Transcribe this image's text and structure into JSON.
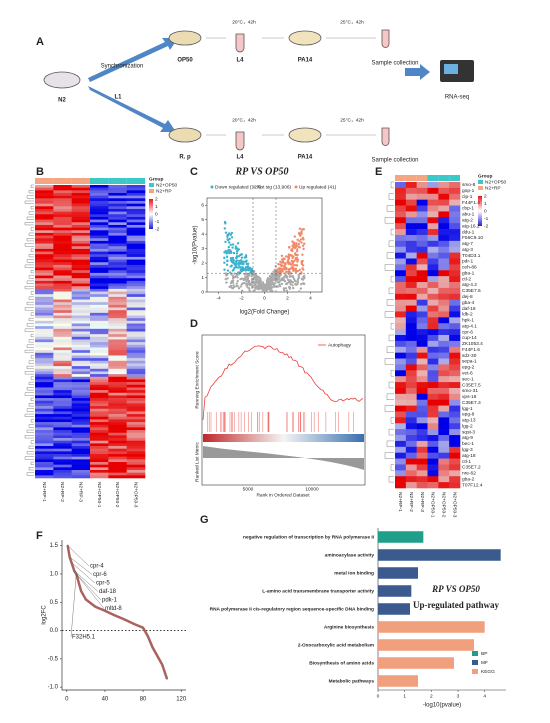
{
  "panel_a": {
    "letter": "A",
    "strain": "N2",
    "step": "Synchronization",
    "stage": "L1",
    "upper": {
      "food": "OP50",
      "cond1": "20°C，42h",
      "stage": "L4",
      "pathogen": "PA14",
      "cond2": "25°C，42h",
      "end": "Sample collection"
    },
    "lower": {
      "food": "R. p",
      "cond1": "20°C，42h",
      "stage": "L4",
      "pathogen": "PA14",
      "cond2": "25°C，42h",
      "end": "Sample collection"
    },
    "output": "RNA-seq"
  },
  "panel_b": {
    "letter": "B",
    "legend_title": "Group",
    "groups": [
      "N2+OP50",
      "N2+RP"
    ],
    "scale": [
      2,
      1,
      0,
      -1,
      -2
    ],
    "columns": [
      "N2+RP-1",
      "N2+RP-2",
      "N2+RP-3",
      "N2+OP50-1",
      "N2+OP50-2",
      "N2+OP50-3"
    ]
  },
  "panel_c": {
    "letter": "C",
    "title": "RP VS OP50",
    "legend": [
      "Down regulated (127)",
      "Not sig (13,906)",
      "Up regulated (41)"
    ],
    "xlabel": "log2(Fold Change)",
    "ylabel": "-log10(Pvalue)",
    "xlim": [
      -5,
      5
    ],
    "ylim": [
      0,
      6.5
    ],
    "xticks": [
      -4,
      -2,
      0,
      2,
      4
    ],
    "yticks": [
      0,
      1,
      2,
      3,
      4,
      5,
      6
    ]
  },
  "panel_d": {
    "letter": "D",
    "legend": "Autophagy",
    "ylabel_top": "Running Enrichment Score",
    "ylabel_bottom": "Ranked List Metric",
    "xlabel": "Rank in Ordered Dataset",
    "xticks": [
      "5000",
      "10000"
    ]
  },
  "panel_e": {
    "letter": "E",
    "legend_title": "Group",
    "groups": [
      "N2+OP50",
      "N2+RP"
    ],
    "scale": [
      2,
      1,
      0,
      -1,
      -2
    ],
    "columns": [
      "N2+RP-1",
      "N2+RP-2",
      "N2+RP-3",
      "N2+OP50-1",
      "N2+OP50-2",
      "N2+OP50-3"
    ],
    "genes": [
      "smo-8",
      "gop-1",
      "clp-1",
      "F44F1.4",
      "cbp-1",
      "abu-1",
      "atg-2",
      "atg-16.2",
      "ddu-1",
      "F56C9.10",
      "atg-7",
      "atg-3",
      "T04D3.1",
      "pdr-1",
      "ceh-86",
      "gba-1",
      "ctl-2",
      "atg-4.2",
      "C35E7.6",
      "dej-8",
      "gba-4",
      "daf-18",
      "ldb-2",
      "hpk-1",
      "atg-4.1",
      "cpr-6",
      "cup-14",
      "ZK1053.4",
      "F44F1.6",
      "sdz-30",
      "sepa-1",
      "epg-2",
      "vet-6",
      "sec-1",
      "C35E7.5",
      "smo-31",
      "vps-18",
      "C35E7.3",
      "lgg-1",
      "epg-8",
      "atg-13",
      "lgg-2",
      "sqst-3",
      "atg-9",
      "bec-1",
      "lgg-3",
      "atg-18",
      "ctl-1",
      "C35E7.2",
      "nre-62",
      "gba-2",
      "T07F12.4"
    ]
  },
  "chart_data": [
    {
      "letter": "F",
      "type": "line",
      "ylabel": "log2FC",
      "color": "#b0605a",
      "x": [
        1,
        3,
        5,
        8,
        10,
        15,
        20,
        30,
        40,
        50,
        60,
        70,
        80,
        85,
        90,
        95,
        100,
        103,
        105
      ],
      "values": [
        1.5,
        1.3,
        1.2,
        1.05,
        1.0,
        0.7,
        0.55,
        0.42,
        0.35,
        0.27,
        0.2,
        0.12,
        0.05,
        -0.1,
        -0.3,
        -0.45,
        -0.6,
        -0.75,
        -0.85
      ],
      "hline": 0,
      "xlim": [
        -5,
        125
      ],
      "xticks": [
        0,
        40,
        80,
        120
      ],
      "ylim": [
        -1.05,
        1.6
      ],
      "yticks": [
        {
          "value": -1,
          "label": "-1.0"
        },
        -0.5,
        {
          "value": 0,
          "label": "0.0"
        },
        0.5,
        {
          "value": 1,
          "label": "1.0"
        },
        1.5
      ],
      "annotations": [
        "cpr-4",
        "cpr-6",
        "cpr-5",
        "daf-18",
        "pdk-1",
        "mltd-8",
        "F32H5.1"
      ]
    },
    {
      "letter": "G",
      "type": "barh",
      "title": "RP VS OP50",
      "subtitle": "Up-regulated  pathway",
      "xlabel": "-log10(pvalue)",
      "categories": [
        "negative regulation of transcription by RNA polymerase II",
        "aminoacylase activity",
        "metal ion binding",
        "L-amino acid transmembrane transporter activity",
        "RNA polymerase II cis-regulatory region sequence-specific DNA binding",
        "Arginine biosynthesis",
        "2-Oxocarboxylic acid metabolism",
        "Biosynthesis of amino acids",
        "Metabolic pathways"
      ],
      "values": [
        1.7,
        4.6,
        1.5,
        1.25,
        1.2,
        4.0,
        3.6,
        2.85,
        1.5
      ],
      "groups": [
        0,
        1,
        1,
        1,
        1,
        2,
        2,
        2,
        2
      ],
      "legend": [
        {
          "name": "BP",
          "color": "#1f9e89"
        },
        {
          "name": "MF",
          "color": "#3b5b8e"
        },
        {
          "name": "KEGG",
          "color": "#f0a07c"
        }
      ],
      "xlim": [
        0,
        4.8
      ],
      "xticks": [
        0,
        1,
        2,
        3,
        4
      ]
    }
  ]
}
